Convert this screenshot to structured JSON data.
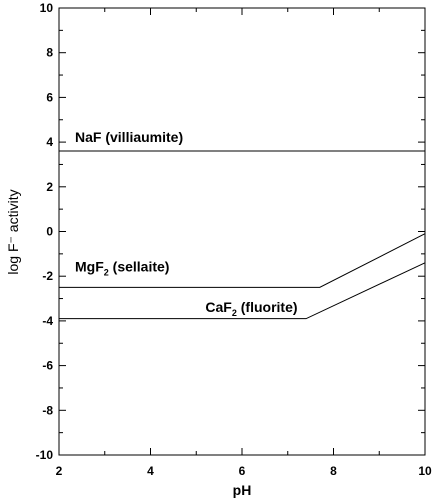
{
  "chart_data": {
    "type": "line",
    "title": "",
    "xlabel": "pH",
    "ylabel": "log F⁻ activity",
    "xlim": [
      2,
      10
    ],
    "ylim": [
      -10,
      10
    ],
    "xticks": [
      "2",
      "4",
      "6",
      "8",
      "10"
    ],
    "yticks": [
      "-10",
      "-8",
      "-6",
      "-4",
      "-2",
      "0",
      "2",
      "4",
      "6",
      "8",
      "10"
    ],
    "grid": false,
    "legend": "none",
    "series": [
      {
        "x": [
          2,
          10
        ],
        "y": [
          3.6,
          3.6
        ],
        "color": "#000000"
      },
      {
        "x": [
          2,
          7.7,
          10
        ],
        "y": [
          -2.5,
          -2.5,
          -0.1
        ],
        "color": "#000000"
      },
      {
        "x": [
          2,
          7.4,
          10
        ],
        "y": [
          -3.9,
          -3.9,
          -1.4
        ],
        "color": "#000000"
      }
    ],
    "annotations": [
      {
        "id": "naf",
        "text": "NaF (villiaumite)",
        "x": 2.35,
        "y": 4.0
      },
      {
        "id": "mgf2",
        "text": "MgF",
        "sub": "2",
        "rest": " (sellaite)",
        "x": 2.35,
        "y": -1.8
      },
      {
        "id": "caf2",
        "text": "CaF",
        "sub": "2",
        "rest": " (fluorite)",
        "x": 5.2,
        "y": -3.6
      }
    ]
  }
}
